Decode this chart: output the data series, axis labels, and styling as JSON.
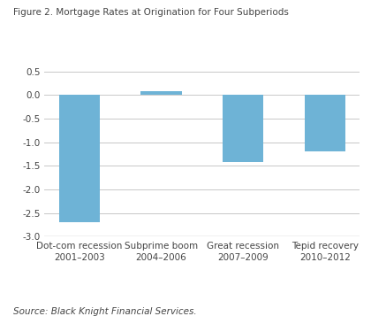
{
  "title": "Figure 2. Mortgage Rates at Origination for Four Subperiods",
  "categories": [
    "Dot-com recession\n2001–2003",
    "Subprime boom\n2004–2006",
    "Great recession\n2007–2009",
    "Tepid recovery\n2010–2012"
  ],
  "values": [
    -2.7,
    0.07,
    -1.42,
    -1.2
  ],
  "bar_color": "#6EB3D6",
  "ylim": [
    -3.0,
    0.5
  ],
  "yticks": [
    0.5,
    0.0,
    -0.5,
    -1.0,
    -1.5,
    -2.0,
    -2.5,
    -3.0
  ],
  "source_text": "Source: Black Knight Financial Services.",
  "background_color": "#ffffff",
  "grid_color": "#c8c8c8",
  "title_fontsize": 7.5,
  "tick_fontsize": 7.5,
  "source_fontsize": 7.5,
  "bar_width": 0.5
}
